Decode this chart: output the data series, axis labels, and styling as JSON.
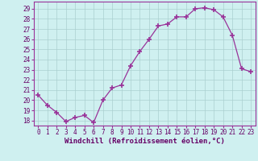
{
  "x": [
    0,
    1,
    2,
    3,
    4,
    5,
    6,
    7,
    8,
    9,
    10,
    11,
    12,
    13,
    14,
    15,
    16,
    17,
    18,
    19,
    20,
    21,
    22,
    23
  ],
  "y": [
    20.5,
    19.5,
    18.8,
    17.9,
    18.3,
    18.5,
    17.8,
    20.0,
    21.2,
    21.5,
    23.4,
    24.8,
    26.0,
    27.3,
    27.5,
    28.2,
    28.2,
    29.0,
    29.1,
    28.9,
    28.2,
    26.4,
    23.1,
    22.8
  ],
  "line_color": "#993399",
  "marker": "+",
  "marker_size": 4,
  "bg_color": "#cff0f0",
  "grid_color": "#aacfcf",
  "xlabel": "Windchill (Refroidissement éolien,°C)",
  "ylabel_ticks": [
    18,
    19,
    20,
    21,
    22,
    23,
    24,
    25,
    26,
    27,
    28,
    29
  ],
  "xlim": [
    -0.5,
    23.5
  ],
  "ylim": [
    17.5,
    29.7
  ],
  "label_color": "#660066",
  "tick_fontsize": 5.5,
  "xlabel_fontsize": 6.5,
  "spine_color": "#993399"
}
